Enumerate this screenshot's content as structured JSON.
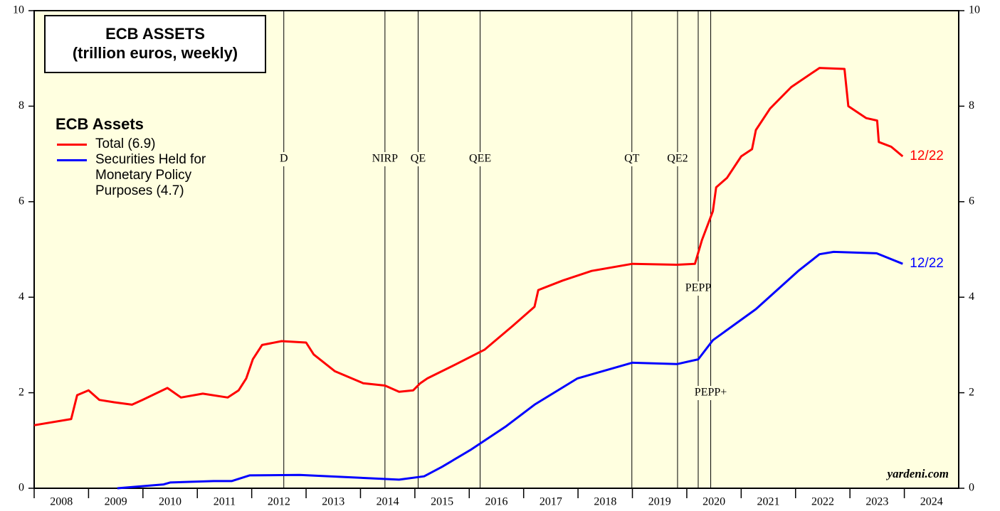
{
  "chart_data": {
    "type": "line",
    "title": "ECB ASSETS",
    "subtitle": "(trillion euros, weekly)",
    "legend_title": "ECB Assets",
    "source": "yardeni.com",
    "xlim": [
      2008,
      2025
    ],
    "xticks": [
      2008,
      2009,
      2010,
      2011,
      2012,
      2013,
      2014,
      2015,
      2016,
      2017,
      2018,
      2019,
      2020,
      2021,
      2022,
      2023,
      2024
    ],
    "ylim": [
      0,
      10
    ],
    "yticks": [
      0,
      2,
      4,
      6,
      8,
      10
    ],
    "y2lim": [
      0,
      10
    ],
    "y2ticks": [
      0,
      2,
      4,
      6,
      8,
      10
    ],
    "events": [
      {
        "label": "D",
        "x": 2012.59
      },
      {
        "label": "NIRP",
        "x": 2014.45
      },
      {
        "label": "QE",
        "x": 2015.06
      },
      {
        "label": "QEE",
        "x": 2016.2
      },
      {
        "label": "QT",
        "x": 2018.99
      },
      {
        "label": "QE2",
        "x": 2019.83
      },
      {
        "label": "PEPP",
        "x": 2020.21
      },
      {
        "label": "PEPP+",
        "x": 2020.44
      }
    ],
    "series": [
      {
        "name": "Total (6.9)",
        "color": "#ff0000",
        "end_label": "12/22",
        "x": [
          2008.0,
          2008.68,
          2008.79,
          2009.0,
          2009.2,
          2009.47,
          2009.8,
          2009.99,
          2010.45,
          2010.7,
          2011.1,
          2011.56,
          2011.76,
          2011.9,
          2012.02,
          2012.19,
          2012.55,
          2013.0,
          2013.14,
          2013.53,
          2014.05,
          2014.45,
          2014.71,
          2014.97,
          2015.1,
          2015.23,
          2015.76,
          2016.28,
          2016.8,
          2017.2,
          2017.27,
          2017.72,
          2018.25,
          2019.0,
          2019.82,
          2020.15,
          2020.28,
          2020.48,
          2020.54,
          2020.74,
          2021.0,
          2021.2,
          2021.27,
          2021.53,
          2021.92,
          2022.44,
          2022.9,
          2022.97,
          2023.3,
          2023.5,
          2023.53,
          2023.76,
          2023.97
        ],
        "values": [
          1.32,
          1.45,
          1.95,
          2.05,
          1.85,
          1.8,
          1.75,
          1.85,
          2.1,
          1.9,
          1.98,
          1.9,
          2.05,
          2.3,
          2.7,
          3.0,
          3.08,
          3.05,
          2.8,
          2.45,
          2.2,
          2.15,
          2.02,
          2.05,
          2.2,
          2.3,
          2.6,
          2.9,
          3.4,
          3.8,
          4.15,
          4.35,
          4.55,
          4.7,
          4.68,
          4.7,
          5.2,
          5.8,
          6.3,
          6.5,
          6.95,
          7.1,
          7.5,
          7.95,
          8.4,
          8.8,
          8.78,
          8.0,
          7.75,
          7.7,
          7.25,
          7.15,
          6.95
        ]
      },
      {
        "name": "Securities Held for Monetary Policy Purposes (4.7)",
        "color": "#0000ff",
        "end_label": "12/22",
        "x": [
          2009.53,
          2010.38,
          2010.5,
          2011.3,
          2011.63,
          2011.96,
          2012.88,
          2014.71,
          2015.17,
          2015.5,
          2016.02,
          2016.68,
          2017.2,
          2017.99,
          2019.0,
          2019.82,
          2020.21,
          2020.48,
          2021.27,
          2022.05,
          2022.44,
          2022.7,
          2023.49,
          2023.97
        ],
        "values": [
          0.0,
          0.08,
          0.12,
          0.15,
          0.15,
          0.27,
          0.28,
          0.18,
          0.25,
          0.45,
          0.8,
          1.3,
          1.75,
          2.3,
          2.63,
          2.6,
          2.7,
          3.1,
          3.75,
          4.55,
          4.9,
          4.95,
          4.92,
          4.7
        ]
      }
    ]
  }
}
